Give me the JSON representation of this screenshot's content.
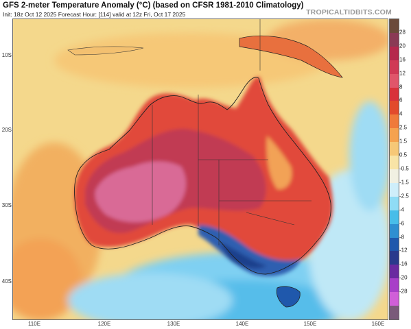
{
  "header": {
    "title": "GFS 2-meter Temperature Anomaly (°C) (based on CFSR 1981-2010 Climatology)",
    "subtitle": "Init: 18z Oct 12 2025   Forecast Hour: [114]   valid at 12z Fri, Oct 17 2025",
    "brand": "TROPICALTIDBITS.COM"
  },
  "map": {
    "latitude_labels": [
      "10S",
      "20S",
      "30S",
      "40S"
    ],
    "longitude_labels": [
      "110E",
      "120E",
      "130E",
      "140E",
      "150E",
      "160E"
    ],
    "icons": [
      "state-borders",
      "coastlines"
    ]
  },
  "colorbar": {
    "unit": "°C",
    "labels": [
      "28",
      "20",
      "16",
      "12",
      "8",
      "6",
      "4",
      "2.5",
      "1.5",
      "0.5",
      "-0.5",
      "-1.5",
      "-2.5",
      "-4",
      "-6",
      "-8",
      "-12",
      "-16",
      "-20",
      "-28"
    ],
    "colors": [
      "#6b4a3a",
      "#8a3a55",
      "#b5284d",
      "#d03a55",
      "#e0566a",
      "#d8323a",
      "#e24a2c",
      "#ef7a3a",
      "#f5a24e",
      "#f6c877",
      "#f8e4a6",
      "#f1f0e2",
      "#cfeefa",
      "#8fdcf5",
      "#48bde9",
      "#2f8fd1",
      "#1f58ac",
      "#2a3a8c",
      "#6a2aa0",
      "#a83fc8",
      "#d05fd8",
      "#7a5a7a"
    ]
  }
}
